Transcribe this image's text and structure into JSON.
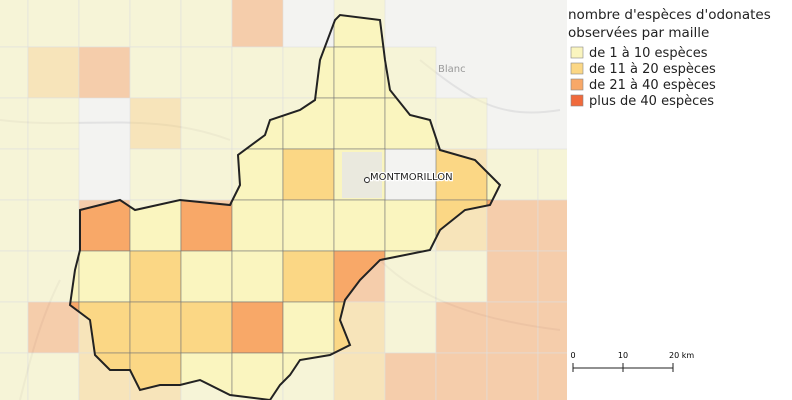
{
  "legend": {
    "title": [
      "nombre d'espèces d'odonates",
      "observées par maille"
    ],
    "items": [
      {
        "label": "de 1 à 10 espèces",
        "color": "#faf5bf"
      },
      {
        "label": "de 11 à 20 espèces",
        "color": "#fbd785"
      },
      {
        "label": "de 21 à 40 espèces",
        "color": "#f8a868"
      },
      {
        "label": "plus de 40 espèces",
        "color": "#f06a3c"
      }
    ]
  },
  "map": {
    "city": "MONTMORILLON",
    "town": "Blanc"
  },
  "scale": {
    "labels": [
      "0",
      "10",
      "20 km"
    ]
  }
}
